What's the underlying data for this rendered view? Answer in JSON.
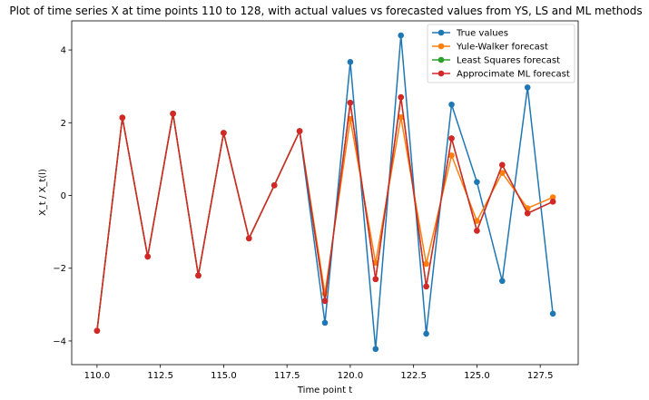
{
  "chart_data": {
    "type": "line",
    "title": "Plot of time series X at time points 110 to 128, with actual values vs forecasted values from YS, LS and ML methods",
    "xlabel": "Time point t",
    "ylabel": "X_t / X_t(l)",
    "x": [
      110,
      111,
      112,
      113,
      114,
      115,
      116,
      117,
      118,
      119,
      120,
      121,
      122,
      123,
      124,
      125,
      126,
      127,
      128
    ],
    "xlim": [
      109,
      129
    ],
    "ylim": [
      -4.65,
      4.8
    ],
    "x_ticks": [
      110.0,
      112.5,
      115.0,
      117.5,
      120.0,
      122.5,
      125.0,
      127.5
    ],
    "x_tick_labels": [
      "110.0",
      "112.5",
      "115.0",
      "117.5",
      "120.0",
      "122.5",
      "125.0",
      "127.5"
    ],
    "y_ticks": [
      -4,
      -2,
      0,
      2,
      4
    ],
    "y_tick_labels": [
      "−4",
      "−2",
      "0",
      "2",
      "4"
    ],
    "grid": false,
    "legend_position": "top-right",
    "marker": "circle",
    "series": [
      {
        "name": "True values",
        "color": "#1f77b4",
        "values": [
          -3.72,
          2.14,
          -1.68,
          2.25,
          -2.2,
          1.72,
          -1.18,
          0.28,
          1.77,
          -3.5,
          3.67,
          -4.22,
          4.4,
          -3.8,
          2.5,
          0.37,
          -2.35,
          2.97,
          -3.25
        ]
      },
      {
        "name": "Yule-Walker forecast",
        "color": "#ff7f0e",
        "values": [
          -3.72,
          2.14,
          -1.68,
          2.25,
          -2.2,
          1.72,
          -1.18,
          0.28,
          1.77,
          -2.7,
          2.1,
          -1.85,
          2.15,
          -1.88,
          1.1,
          -0.7,
          0.62,
          -0.35,
          -0.05
        ]
      },
      {
        "name": "Least Squares forecast",
        "color": "#2ca02c",
        "values": [
          -3.72,
          2.14,
          -1.68,
          2.25,
          -2.2,
          1.72,
          -1.18,
          0.28,
          1.77,
          -2.9,
          2.55,
          -2.3,
          2.7,
          -2.5,
          1.57,
          -0.97,
          0.84,
          -0.49,
          -0.17
        ]
      },
      {
        "name": "Approcimate ML forecast",
        "color": "#d62728",
        "values": [
          -3.72,
          2.14,
          -1.68,
          2.25,
          -2.2,
          1.72,
          -1.18,
          0.28,
          1.77,
          -2.9,
          2.55,
          -2.3,
          2.7,
          -2.5,
          1.57,
          -0.97,
          0.84,
          -0.49,
          -0.17
        ]
      }
    ]
  }
}
